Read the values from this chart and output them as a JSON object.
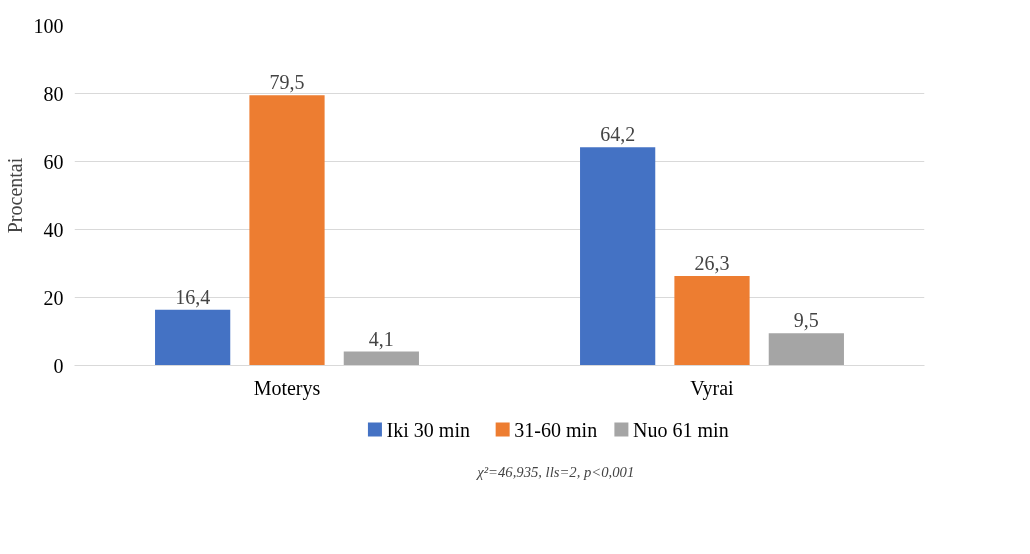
{
  "chart_data": {
    "type": "bar",
    "ylabel": "Procentai",
    "categories": [
      "Moterys",
      "Vyrai"
    ],
    "series": [
      {
        "name": "Iki 30 min",
        "color": "#4472c4",
        "values": [
          16.4,
          64.2
        ],
        "value_labels": [
          "16,4",
          "64,2"
        ]
      },
      {
        "name": "31-60 min",
        "color": "#ed7d31",
        "values": [
          79.5,
          26.3
        ],
        "value_labels": [
          "79,5",
          "26,3"
        ]
      },
      {
        "name": "Nuo 61 min",
        "color": "#a5a5a5",
        "values": [
          4.1,
          9.5
        ],
        "value_labels": [
          "4,1",
          "9,5"
        ]
      }
    ],
    "ylim": [
      0,
      100
    ],
    "yticks": [
      0,
      20,
      40,
      60,
      80,
      100
    ],
    "grid": "y",
    "legend": "bottom",
    "annotations": [
      "χ²=46,935, lls=2, p<0,001"
    ]
  }
}
